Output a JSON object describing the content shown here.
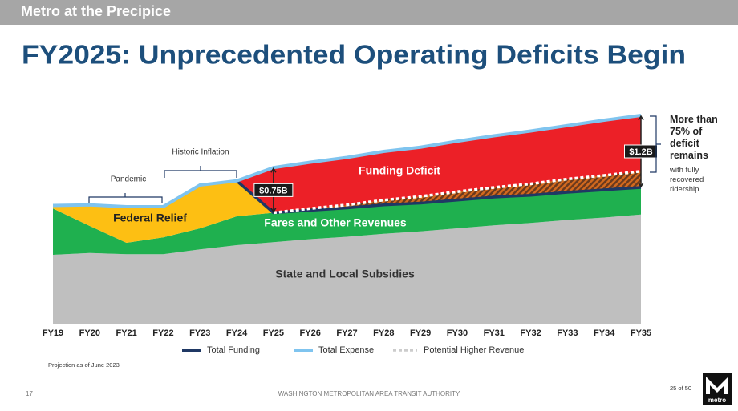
{
  "header": "Metro at the Precipice",
  "title": "FY2025: Unprecedented Operating Deficits Begin",
  "chart_data": {
    "type": "area",
    "categories": [
      "FY19",
      "FY20",
      "FY21",
      "FY22",
      "FY23",
      "FY24",
      "FY25",
      "FY26",
      "FY27",
      "FY28",
      "FY29",
      "FY30",
      "FY31",
      "FY32",
      "FY33",
      "FY34",
      "FY35"
    ],
    "ylim": [
      0,
      3.6
    ],
    "series": [
      {
        "name": "State and Local Subsidies",
        "color": "#bfbfbf",
        "values": [
          1.16,
          1.19,
          1.17,
          1.17,
          1.25,
          1.32,
          1.37,
          1.42,
          1.46,
          1.51,
          1.55,
          1.6,
          1.65,
          1.69,
          1.74,
          1.78,
          1.83
        ]
      },
      {
        "name": "Fares and Other Revenues",
        "color": "#1fb04f",
        "values": [
          0.77,
          0.45,
          0.19,
          0.28,
          0.35,
          0.48,
          0.49,
          0.48,
          0.48,
          0.48,
          0.47,
          0.47,
          0.47,
          0.46,
          0.46,
          0.46,
          0.45
        ]
      },
      {
        "name": "Federal Relief",
        "color": "#fdbf13",
        "values": [
          0.05,
          0.35,
          0.6,
          0.51,
          0.72,
          0.59,
          0,
          null,
          null,
          null,
          null,
          null,
          null,
          null,
          null,
          null,
          null
        ]
      },
      {
        "name": "Funding Deficit",
        "color": "#ec2027",
        "values": [
          null,
          null,
          null,
          null,
          null,
          0,
          0.75,
          0.8,
          0.84,
          0.89,
          0.93,
          0.98,
          1.02,
          1.07,
          1.11,
          1.16,
          1.2
        ],
        "value_labels": [
          null,
          null,
          null,
          null,
          null,
          null,
          "$0.75B",
          null,
          null,
          null,
          null,
          null,
          null,
          null,
          null,
          null,
          "$1.2B"
        ]
      },
      {
        "name": "Potential Higher Revenue",
        "color": "#a0522d",
        "values": [
          null,
          null,
          null,
          null,
          null,
          null,
          0,
          0.03,
          0.05,
          0.08,
          0.11,
          0.14,
          0.16,
          0.19,
          0.22,
          0.24,
          0.27
        ]
      }
    ],
    "legend": [
      {
        "name": "Total Funding",
        "color": "#1f3864"
      },
      {
        "name": "Total Expense",
        "color": "#7fc4ef"
      }
    ],
    "annotations": [
      "Pandemic",
      "Historic Inflation"
    ]
  },
  "note": {
    "main": "More than 75% of deficit remains",
    "sub": "with fully recovered ridership"
  },
  "projection": "Projection as of June 2023",
  "footer": {
    "page": "17",
    "org": "WASHINGTON METROPOLITAN AREA TRANSIT AUTHORITY",
    "count": "25 of 50",
    "logo": "metro"
  }
}
